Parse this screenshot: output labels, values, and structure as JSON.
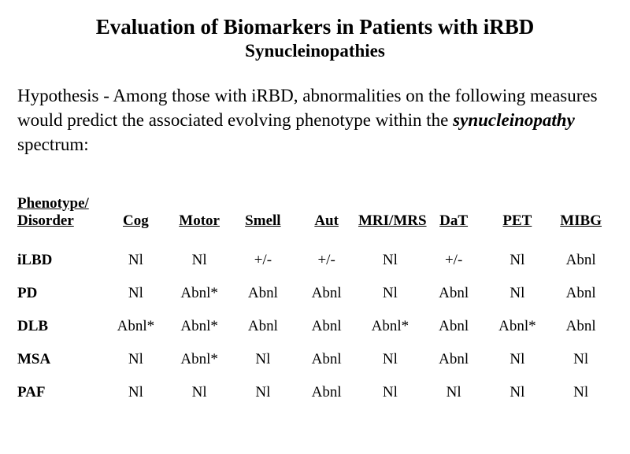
{
  "title": "Evaluation of Biomarkers in Patients with iRBD",
  "subtitle": "Synucleinopathies",
  "hypothesis_prefix": "Hypothesis - Among those with iRBD, abnormalities on the following measures would predict the associated evolving phenotype within the ",
  "hypothesis_emph": "synucleinopathy",
  "hypothesis_suffix": " spectrum:",
  "table": {
    "header_line1": "Phenotype/",
    "header_line2": "Disorder",
    "columns": [
      "Cog",
      "Motor",
      "Smell",
      "Aut",
      "MRI/MRS",
      "DaT",
      "PET",
      "MIBG"
    ],
    "rows": [
      {
        "label": "iLBD",
        "cells": [
          "Nl",
          "Nl",
          "+/-",
          "+/-",
          "Nl",
          "+/-",
          "Nl",
          "Abnl"
        ]
      },
      {
        "label": "PD",
        "cells": [
          "Nl",
          "Abnl*",
          "Abnl",
          "Abnl",
          "Nl",
          "Abnl",
          "Nl",
          "Abnl"
        ]
      },
      {
        "label": "DLB",
        "cells": [
          "Abnl*",
          "Abnl*",
          "Abnl",
          "Abnl",
          "Abnl*",
          "Abnl",
          "Abnl*",
          "Abnl"
        ]
      },
      {
        "label": "MSA",
        "cells": [
          "Nl",
          "Abnl*",
          "Nl",
          "Abnl",
          "Nl",
          "Abnl",
          "Nl",
          "Nl"
        ]
      },
      {
        "label": "PAF",
        "cells": [
          "Nl",
          "Nl",
          "Nl",
          "Abnl",
          "Nl",
          "Nl",
          "Nl",
          "Nl"
        ]
      }
    ]
  }
}
